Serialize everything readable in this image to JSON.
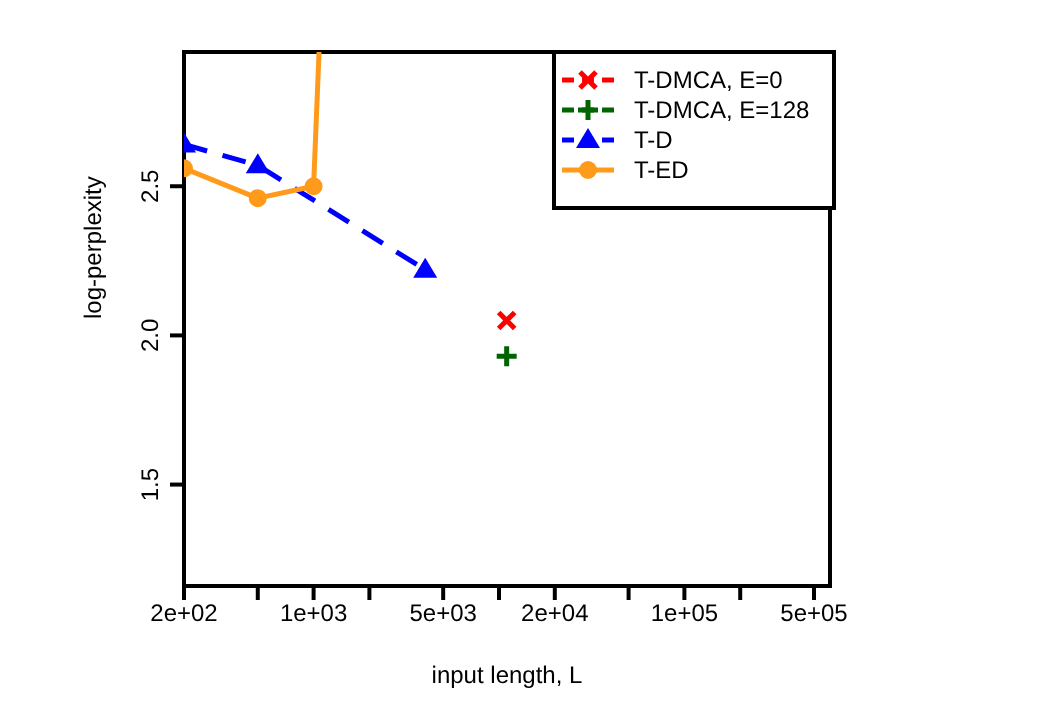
{
  "chart_data": {
    "type": "line",
    "xlabel": "input length, L",
    "ylabel": "log-perplexity",
    "log": "x",
    "xlim": [
      200,
      610000
    ],
    "xticks": [
      {
        "value": 200,
        "label": "2e+02"
      },
      {
        "value": 500,
        "label": null
      },
      {
        "value": 1000,
        "label": "1e+03"
      },
      {
        "value": 2000,
        "label": null
      },
      {
        "value": 5000,
        "label": "5e+03"
      },
      {
        "value": 10000,
        "label": null
      },
      {
        "value": 20000,
        "label": "2e+04"
      },
      {
        "value": 50000,
        "label": null
      },
      {
        "value": 100000,
        "label": "1e+05"
      },
      {
        "value": 200000,
        "label": null
      },
      {
        "value": 500000,
        "label": "5e+05"
      }
    ],
    "ylim": [
      1.16,
      2.95
    ],
    "yticks": [
      1.5,
      {
        "value": 2,
        "label": "2.0"
      },
      2.5
    ],
    "legend": "top right",
    "series": [
      {
        "name": "T-DMCA, E=0",
        "color": "#ff0000",
        "marker": "x",
        "line_style": "dashed",
        "x": [
          11000
        ],
        "values": [
          2.05
        ]
      },
      {
        "name": "T-DMCA, E=128",
        "color": "#006400",
        "marker": "cross",
        "line_style": "dashed",
        "x": [
          11000
        ],
        "values": [
          1.93
        ]
      },
      {
        "name": "T-D",
        "color": "#0000ff",
        "marker": "triangle",
        "line_style": "dashed",
        "x": [
          200,
          500,
          4000
        ],
        "values": [
          2.64,
          2.57,
          2.22
        ]
      },
      {
        "name": "T-ED",
        "color": "#ff9a1a",
        "marker": "circle",
        "line_style": "solid",
        "x": [
          200,
          500,
          1000,
          1070
        ],
        "values": [
          2.56,
          2.46,
          2.5,
          2.95
        ]
      }
    ]
  }
}
